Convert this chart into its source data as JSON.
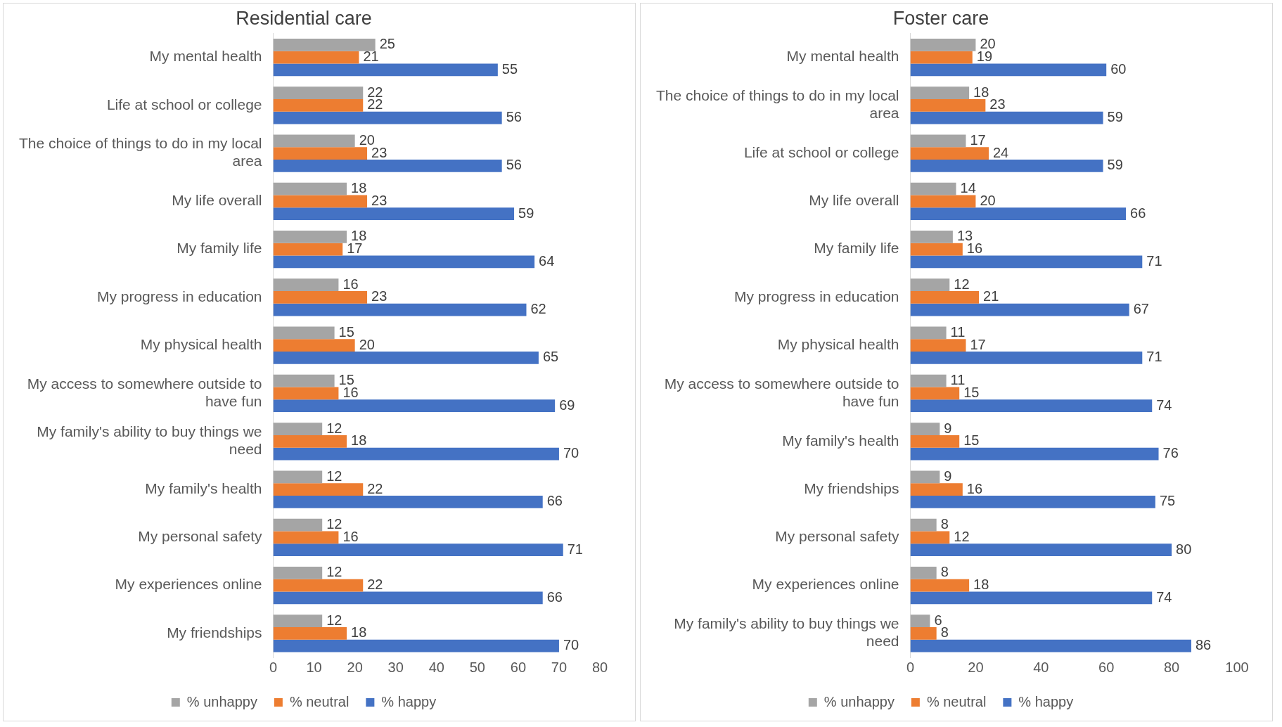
{
  "chart_data": [
    {
      "type": "bar",
      "orientation": "horizontal",
      "title": "Residential care",
      "categories": [
        "My mental health",
        "Life at school or college",
        "The choice of things to do in my local area",
        "My life overall",
        "My family life",
        "My progress in education",
        "My physical health",
        "My access to somewhere outside to have fun",
        "My family's ability to buy things we need",
        "My family's health",
        "My personal safety",
        "My experiences online",
        "My friendships"
      ],
      "series": [
        {
          "name": "% unhappy",
          "color": "#a5a5a5",
          "values": [
            25,
            22,
            20,
            18,
            18,
            16,
            15,
            15,
            12,
            12,
            12,
            12,
            12
          ]
        },
        {
          "name": "% neutral",
          "color": "#ed7d31",
          "values": [
            21,
            22,
            23,
            23,
            17,
            23,
            20,
            16,
            18,
            22,
            16,
            22,
            18
          ]
        },
        {
          "name": "% happy",
          "color": "#4472c4",
          "values": [
            55,
            56,
            56,
            59,
            64,
            62,
            65,
            69,
            70,
            66,
            71,
            66,
            70
          ]
        }
      ],
      "xlim": [
        0,
        80
      ],
      "xticks": [
        0,
        10,
        20,
        30,
        40,
        50,
        60,
        70,
        80
      ],
      "data_labels": true,
      "legend": "bottom",
      "grid": false
    },
    {
      "type": "bar",
      "orientation": "horizontal",
      "title": "Foster care",
      "categories": [
        "My mental health",
        "The choice of things to do in my local area",
        "Life at school or college",
        "My life overall",
        "My family life",
        "My progress in education",
        "My physical health",
        "My access to somewhere outside to have fun",
        "My family's health",
        "My friendships",
        "My personal safety",
        "My experiences online",
        "My family's ability to buy things we need"
      ],
      "series": [
        {
          "name": "% unhappy",
          "color": "#a5a5a5",
          "values": [
            20,
            18,
            17,
            14,
            13,
            12,
            11,
            11,
            9,
            9,
            8,
            8,
            6
          ]
        },
        {
          "name": "% neutral",
          "color": "#ed7d31",
          "values": [
            19,
            23,
            24,
            20,
            16,
            21,
            17,
            15,
            15,
            16,
            12,
            18,
            8
          ]
        },
        {
          "name": "% happy",
          "color": "#4472c4",
          "values": [
            60,
            59,
            59,
            66,
            71,
            67,
            71,
            74,
            76,
            75,
            80,
            74,
            86
          ]
        }
      ],
      "xlim": [
        0,
        100
      ],
      "xticks": [
        0,
        20,
        40,
        60,
        80,
        100
      ],
      "data_labels": true,
      "legend": "bottom",
      "grid": false
    }
  ]
}
